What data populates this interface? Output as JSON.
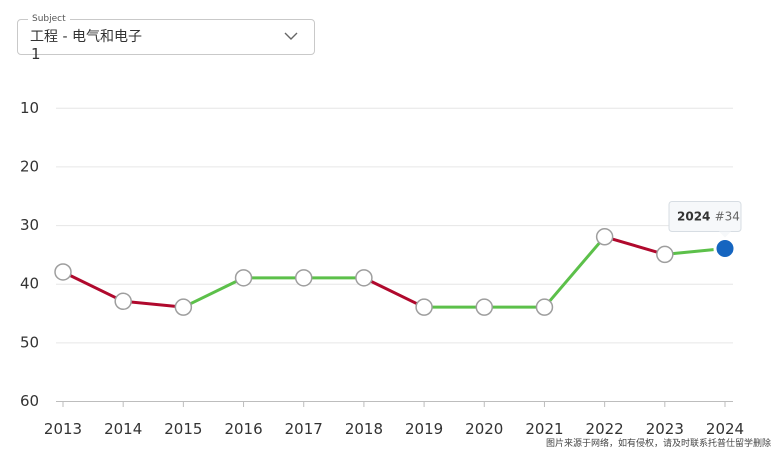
{
  "subject": {
    "label": "Subject",
    "value": "工程 - 电气和电子"
  },
  "chart_data": {
    "type": "line",
    "x": [
      "2013",
      "2014",
      "2015",
      "2016",
      "2017",
      "2018",
      "2019",
      "2020",
      "2021",
      "2022",
      "2023",
      "2024"
    ],
    "series": [
      {
        "values": [
          38,
          43,
          44,
          39,
          39,
          39,
          44,
          44,
          44,
          32,
          35,
          34
        ]
      }
    ],
    "y_ticks": [
      "1",
      "10",
      "20",
      "30",
      "40",
      "50",
      "60"
    ],
    "ylim": [
      1,
      60
    ],
    "y_inverted": true,
    "grid": true,
    "colors": {
      "improve": "#5cc04a",
      "decline": "#b0092d",
      "highlight": "#1565c0",
      "marker": "#ffffff",
      "marker_border": "#9e9e9e"
    },
    "tooltip": {
      "year": "2024",
      "rank": "#34"
    }
  },
  "watermark": "图片来源于网络，如有侵权，请及时联系托普仕留学删除"
}
